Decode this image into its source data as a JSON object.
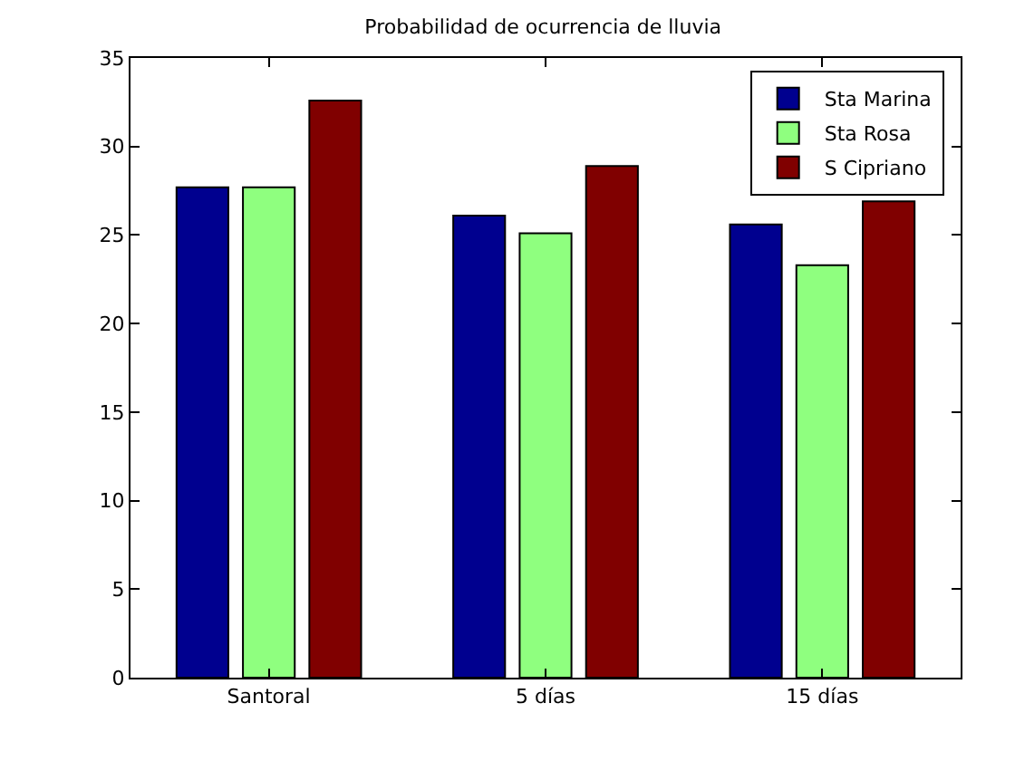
{
  "chart_data": {
    "type": "bar",
    "title": "Probabilidad de ocurrencia de lluvia",
    "categories": [
      "Santoral",
      "5 días",
      "15 días"
    ],
    "series": [
      {
        "name": "Sta Marina",
        "color": "#00008f",
        "values": [
          27.7,
          26.1,
          25.6
        ]
      },
      {
        "name": "Sta Rosa",
        "color": "#8fff7f",
        "values": [
          27.7,
          25.1,
          23.3
        ]
      },
      {
        "name": "S Cipriano",
        "color": "#800000",
        "values": [
          32.6,
          28.9,
          26.9
        ]
      }
    ],
    "ylim": [
      0,
      35
    ],
    "yticks": [
      0,
      5,
      10,
      15,
      20,
      25,
      30,
      35
    ],
    "grid": false,
    "legend": "top right"
  }
}
